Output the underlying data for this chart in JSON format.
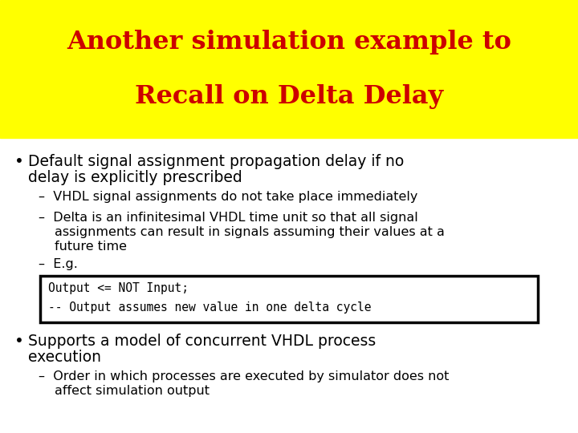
{
  "title_line1": "Another simulation example to",
  "title_line2": "Recall on Delta Delay",
  "title_color": "#CC0000",
  "title_bg_color": "#FFFF00",
  "slide_bg_color": "#FFFFFF",
  "bullet1_main_l1": "Default signal assignment propagation delay if no",
  "bullet1_main_l2": "delay is explicitly prescribed",
  "bullet1_sub1": "VHDL signal assignments do not take place immediately",
  "bullet1_sub2_l1": "Delta is an infinitesimal VHDL time unit so that all signal",
  "bullet1_sub2_l2": "assignments can result in signals assuming their values at a",
  "bullet1_sub2_l3": "future time",
  "bullet1_sub3": "E.g.",
  "code_line1": "Output <= NOT Input;",
  "code_line2": "-- Output assumes new value in one delta cycle",
  "bullet2_main_l1": "Supports a model of concurrent VHDL process",
  "bullet2_main_l2": "execution",
  "bullet2_sub1_l1": "Order in which processes are executed by simulator does not",
  "bullet2_sub1_l2": "affect simulation output",
  "font_color": "#000000",
  "code_bg": "#FFFFFF",
  "code_border": "#000000",
  "title_fontsize": 23,
  "body_fontsize": 13.5,
  "sub_fontsize": 11.5,
  "code_fontsize": 10.5
}
